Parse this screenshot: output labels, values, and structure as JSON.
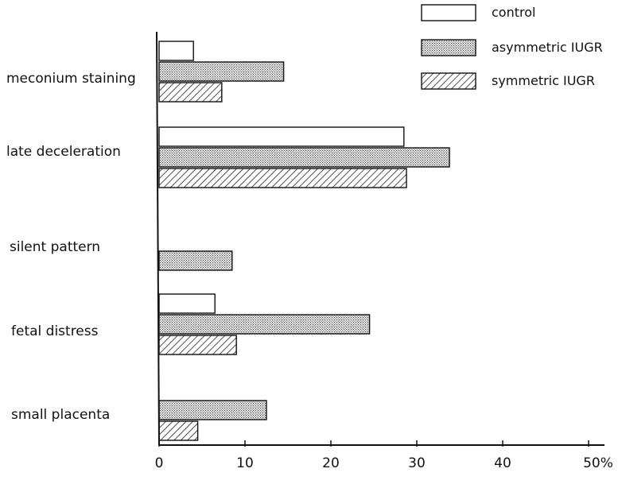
{
  "chart_data": {
    "type": "bar",
    "orientation": "horizontal",
    "categories": [
      "meconium  staining",
      "late  deceleration",
      "silent  pattern",
      "fetal  distress",
      "small placenta"
    ],
    "series": [
      {
        "name": "control",
        "values": [
          4,
          28.5,
          0,
          6.5,
          0
        ],
        "pattern": "open"
      },
      {
        "name": "asymmetric  IUGR",
        "values": [
          14.5,
          33.8,
          8.5,
          24.5,
          12.5
        ],
        "pattern": "dotted"
      },
      {
        "name": "symmetric  IUGR",
        "values": [
          7.3,
          28.8,
          0,
          9,
          4.5
        ],
        "pattern": "hatched"
      }
    ],
    "x_ticks": [
      "0",
      "10",
      "20",
      "30",
      "40",
      "50%"
    ],
    "xlim": [
      0,
      50
    ],
    "legend_position": "top-right",
    "grid": false
  }
}
